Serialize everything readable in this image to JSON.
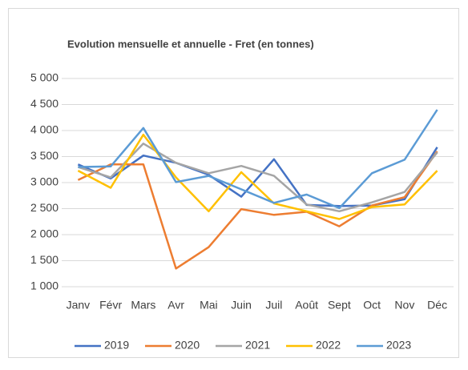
{
  "chart_data": {
    "type": "line",
    "title": "Evolution mensuelle et annuelle - Fret (en tonnes)",
    "categories": [
      "Janv",
      "Févr",
      "Mars",
      "Avr",
      "Mai",
      "Juin",
      "Juil",
      "Août",
      "Sept",
      "Oct",
      "Nov",
      "Déc"
    ],
    "series": [
      {
        "name": "2019",
        "color": "#4472c4",
        "values": [
          3350,
          3080,
          3520,
          3380,
          3150,
          2730,
          3450,
          2570,
          2550,
          2560,
          2680,
          3680
        ]
      },
      {
        "name": "2020",
        "color": "#ed7d31",
        "values": [
          3050,
          3350,
          3350,
          1350,
          1760,
          2490,
          2380,
          2440,
          2160,
          2560,
          2720,
          3600
        ]
      },
      {
        "name": "2021",
        "color": "#a5a5a5",
        "values": [
          3300,
          3100,
          3750,
          3380,
          3180,
          3320,
          3130,
          2580,
          2450,
          2620,
          2820,
          3580
        ]
      },
      {
        "name": "2022",
        "color": "#ffc000",
        "values": [
          3230,
          2900,
          3920,
          3100,
          2450,
          3200,
          2600,
          2450,
          2300,
          2530,
          2580,
          3230
        ]
      },
      {
        "name": "2023",
        "color": "#5b9bd5",
        "values": [
          3300,
          3310,
          4050,
          3010,
          3130,
          2870,
          2610,
          2770,
          2510,
          3180,
          3440,
          4400
        ]
      }
    ],
    "ylim": [
      1000,
      5000
    ],
    "yticks": [
      {
        "value": 1000,
        "label": "1 000"
      },
      {
        "value": 1500,
        "label": "1 500"
      },
      {
        "value": 2000,
        "label": "2 000"
      },
      {
        "value": 2500,
        "label": "2 500"
      },
      {
        "value": 3000,
        "label": "3 000"
      },
      {
        "value": 3500,
        "label": "3 500"
      },
      {
        "value": 4000,
        "label": "4 000"
      },
      {
        "value": 4500,
        "label": "4 500"
      },
      {
        "value": 5000,
        "label": "5 000"
      }
    ],
    "grid": true,
    "legend": "bottom"
  }
}
